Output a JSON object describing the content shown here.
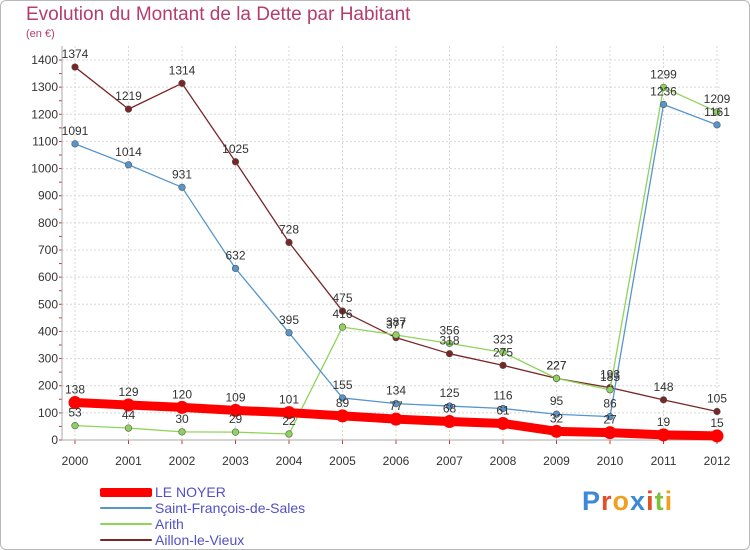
{
  "title": "Evolution du Montant de la Dette par Habitant",
  "subtitle": "(en €)",
  "logo": {
    "text": "Proxiti",
    "letter_colors": [
      "#3c8ad6",
      "#e2502a",
      "#f0a020",
      "#3c8ad6",
      "#e2502a",
      "#7cc13a",
      "#f0a020"
    ]
  },
  "chart_data": {
    "type": "line",
    "x": [
      "2000",
      "2001",
      "2002",
      "2003",
      "2004",
      "2005",
      "2006",
      "2007",
      "2008",
      "2009",
      "2010",
      "2011",
      "2012"
    ],
    "ylim": [
      0,
      1400
    ],
    "yticks": [
      0,
      100,
      200,
      300,
      400,
      500,
      600,
      700,
      800,
      900,
      1000,
      1100,
      1200,
      1300,
      1400
    ],
    "grid": true,
    "legend_position": "bottom-left",
    "series": [
      {
        "name": "LE NOYER",
        "color": "#ff0000",
        "values": [
          138,
          129,
          120,
          109,
          101,
          89,
          77,
          68,
          61,
          32,
          27,
          19,
          15
        ],
        "labels": [
          "138",
          "129",
          "120",
          "109",
          "101",
          "89",
          "77",
          "68",
          "61",
          "32",
          "27",
          "19",
          "15"
        ]
      },
      {
        "name": "Saint-François-de-Sales",
        "color": "#5596cd",
        "values": [
          1091,
          1014,
          931,
          632,
          395,
          155,
          134,
          125,
          116,
          95,
          86,
          1236,
          1161
        ],
        "labels": [
          "1091",
          "1014",
          "931",
          "632",
          "395",
          "155",
          "134",
          "125",
          "116",
          "95",
          "86",
          "1236",
          "1161"
        ]
      },
      {
        "name": "Arith",
        "color": "#8fd45a",
        "values": [
          53,
          44,
          30,
          29,
          22,
          416,
          387,
          356,
          323,
          227,
          185,
          1299,
          1209
        ],
        "labels": [
          "53",
          "44",
          "30",
          "29",
          "22",
          "416",
          "387",
          "356",
          "323",
          "227",
          "185",
          "1299",
          "1209"
        ]
      },
      {
        "name": "Aillon-le-Vieux",
        "color": "#7a2626",
        "values": [
          1374,
          1219,
          1314,
          1025,
          728,
          475,
          377,
          318,
          275,
          227,
          193,
          148,
          105
        ],
        "labels": [
          "1374",
          "1219",
          "1314",
          "1025",
          "728",
          "475",
          "377",
          "318",
          "275",
          "227",
          "193",
          "148",
          "105"
        ]
      }
    ]
  }
}
